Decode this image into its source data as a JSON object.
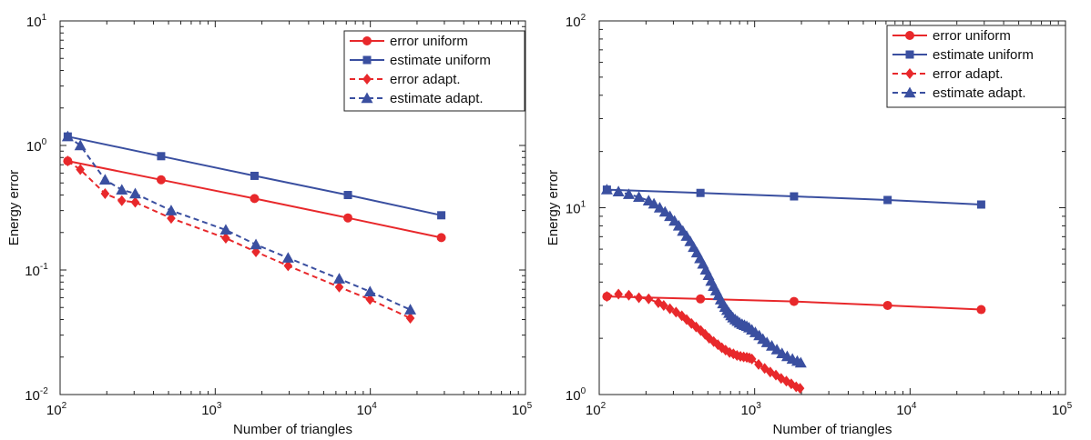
{
  "chart_data": [
    {
      "type": "line",
      "title": "",
      "xlabel": "Number of triangles",
      "ylabel": "Energy error",
      "xscale": "log",
      "yscale": "log",
      "xlim": [
        100,
        100000
      ],
      "ylim": [
        0.01,
        10
      ],
      "x_tick_labels": [
        {
          "base": "10",
          "exp": "2"
        },
        {
          "base": "10",
          "exp": "3"
        },
        {
          "base": "10",
          "exp": "4"
        },
        {
          "base": "10",
          "exp": "5"
        }
      ],
      "y_tick_labels": [
        {
          "base": "10",
          "exp": "-2"
        },
        {
          "base": "10",
          "exp": "-1"
        },
        {
          "base": "10",
          "exp": "0"
        },
        {
          "base": "10",
          "exp": "1"
        }
      ],
      "legend_position": "top-right",
      "grid": false,
      "series": [
        {
          "name": "error uniform",
          "color": "#e8282b",
          "dash": false,
          "marker": "circle",
          "x": [
            112,
            448,
            1792,
            7168,
            28672
          ],
          "y": [
            0.75,
            0.53,
            0.375,
            0.262,
            0.182
          ]
        },
        {
          "name": "estimate uniform",
          "color": "#3a4fa0",
          "dash": false,
          "marker": "square",
          "x": [
            112,
            448,
            1792,
            7168,
            28672
          ],
          "y": [
            1.18,
            0.82,
            0.57,
            0.4,
            0.275
          ]
        },
        {
          "name": "error adapt.",
          "color": "#e8282b",
          "dash": true,
          "marker": "diamond",
          "x": [
            112,
            135,
            195,
            250,
            305,
            520,
            1170,
            1830,
            2950,
            6300,
            9950,
            18100
          ],
          "y": [
            0.75,
            0.64,
            0.41,
            0.36,
            0.35,
            0.26,
            0.18,
            0.14,
            0.108,
            0.073,
            0.058,
            0.041
          ]
        },
        {
          "name": "estimate adapt.",
          "color": "#3a4fa0",
          "dash": true,
          "marker": "triangle",
          "x": [
            112,
            135,
            195,
            250,
            305,
            520,
            1170,
            1830,
            2950,
            6300,
            9950,
            18100
          ],
          "y": [
            1.18,
            1.0,
            0.53,
            0.44,
            0.41,
            0.3,
            0.21,
            0.16,
            0.125,
            0.085,
            0.067,
            0.048
          ]
        }
      ]
    },
    {
      "type": "line",
      "title": "",
      "xlabel": "Number of triangles",
      "ylabel": "Energy error",
      "xscale": "log",
      "yscale": "log",
      "xlim": [
        100,
        100000
      ],
      "ylim": [
        1,
        100
      ],
      "x_tick_labels": [
        {
          "base": "10",
          "exp": "2"
        },
        {
          "base": "10",
          "exp": "3"
        },
        {
          "base": "10",
          "exp": "4"
        },
        {
          "base": "10",
          "exp": "5"
        }
      ],
      "y_tick_labels": [
        {
          "base": "10",
          "exp": "0"
        },
        {
          "base": "10",
          "exp": "1"
        },
        {
          "base": "10",
          "exp": "2"
        }
      ],
      "legend_position": "top-right",
      "grid": false,
      "series": [
        {
          "name": "error uniform",
          "color": "#e8282b",
          "dash": false,
          "marker": "circle",
          "x": [
            112,
            448,
            1792,
            7168,
            28672
          ],
          "y": [
            3.35,
            3.25,
            3.15,
            3.0,
            2.85
          ]
        },
        {
          "name": "estimate uniform",
          "color": "#3a4fa0",
          "dash": false,
          "marker": "square",
          "x": [
            112,
            448,
            1792,
            7168,
            28672
          ],
          "y": [
            12.5,
            12.0,
            11.5,
            11.0,
            10.4
          ]
        },
        {
          "name": "error adapt.",
          "color": "#e8282b",
          "dash": true,
          "marker": "diamond",
          "x": [
            112,
            133,
            155,
            180,
            208,
            240,
            260,
            285,
            312,
            340,
            365,
            392,
            420,
            450,
            480,
            510,
            545,
            580,
            615,
            650,
            690,
            730,
            770,
            810,
            850,
            890,
            925,
            960,
            1060,
            1160,
            1260,
            1370,
            1480,
            1600,
            1720,
            1850,
            1960
          ],
          "y": [
            3.35,
            3.45,
            3.4,
            3.3,
            3.25,
            3.1,
            3.0,
            2.88,
            2.76,
            2.64,
            2.52,
            2.4,
            2.3,
            2.2,
            2.1,
            2.0,
            1.92,
            1.85,
            1.78,
            1.73,
            1.68,
            1.65,
            1.62,
            1.6,
            1.59,
            1.58,
            1.57,
            1.55,
            1.45,
            1.38,
            1.32,
            1.27,
            1.22,
            1.18,
            1.14,
            1.1,
            1.08
          ]
        },
        {
          "name": "estimate adapt.",
          "color": "#3a4fa0",
          "dash": true,
          "marker": "triangle",
          "x": [
            112,
            133,
            155,
            180,
            208,
            225,
            245,
            265,
            285,
            305,
            325,
            345,
            365,
            385,
            405,
            425,
            445,
            465,
            485,
            505,
            525,
            545,
            565,
            585,
            605,
            625,
            645,
            665,
            685,
            705,
            725,
            750,
            775,
            800,
            830,
            860,
            890,
            920,
            960,
            1010,
            1070,
            1130,
            1200,
            1290,
            1390,
            1500,
            1620,
            1750,
            1880,
            1980
          ],
          "y": [
            12.5,
            12.2,
            11.8,
            11.4,
            10.9,
            10.5,
            10.0,
            9.5,
            9.0,
            8.5,
            8.0,
            7.5,
            7.05,
            6.6,
            6.15,
            5.75,
            5.35,
            5.0,
            4.65,
            4.35,
            4.05,
            3.8,
            3.6,
            3.4,
            3.22,
            3.07,
            2.94,
            2.83,
            2.73,
            2.65,
            2.58,
            2.52,
            2.47,
            2.42,
            2.38,
            2.35,
            2.32,
            2.28,
            2.22,
            2.15,
            2.07,
            1.98,
            1.9,
            1.82,
            1.74,
            1.66,
            1.6,
            1.55,
            1.51,
            1.48
          ]
        }
      ]
    }
  ]
}
